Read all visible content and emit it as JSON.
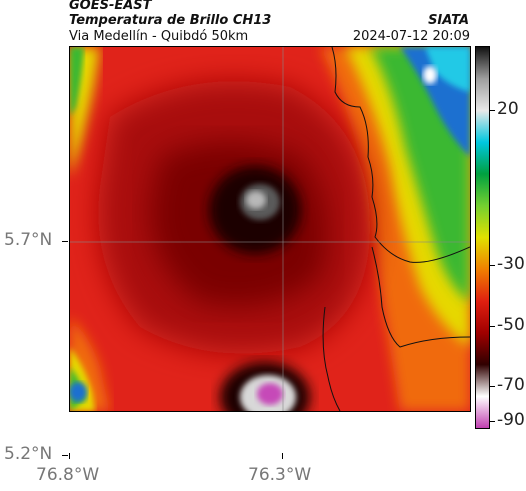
{
  "header": {
    "product": "GOES-EAST",
    "title": "Temperatura de Brillo CH13",
    "region": "Via Medellín - Quibdó 50km",
    "agency": "SIATA",
    "datetime": "2024-07-12 20:09"
  },
  "axes": {
    "lat_labels": [
      "5.7°N",
      "5.2°N"
    ],
    "lon_labels": [
      "76.8°W",
      "76.3°W"
    ]
  },
  "colorbar": {
    "labels": [
      "20",
      "-30",
      "-50",
      "-70",
      "-90"
    ],
    "gradient_colors": [
      "#111111",
      "#9e9e9e",
      "#e8e8e8",
      "#00c7e0",
      "#00a040",
      "#74d030",
      "#e0e000",
      "#f08000",
      "#e02010",
      "#a00000",
      "#300000",
      "#ffffff",
      "#c040b0"
    ]
  },
  "map": {
    "colors": {
      "deep_red": "#a80e0e",
      "red": "#e0231a",
      "orange": "#f06a10",
      "yellow": "#e6d800",
      "green": "#3ab830",
      "blue": "#1c6fd0",
      "cyan": "#23c9e6",
      "black": "#1a0000",
      "magenta": "#c648b8"
    }
  }
}
